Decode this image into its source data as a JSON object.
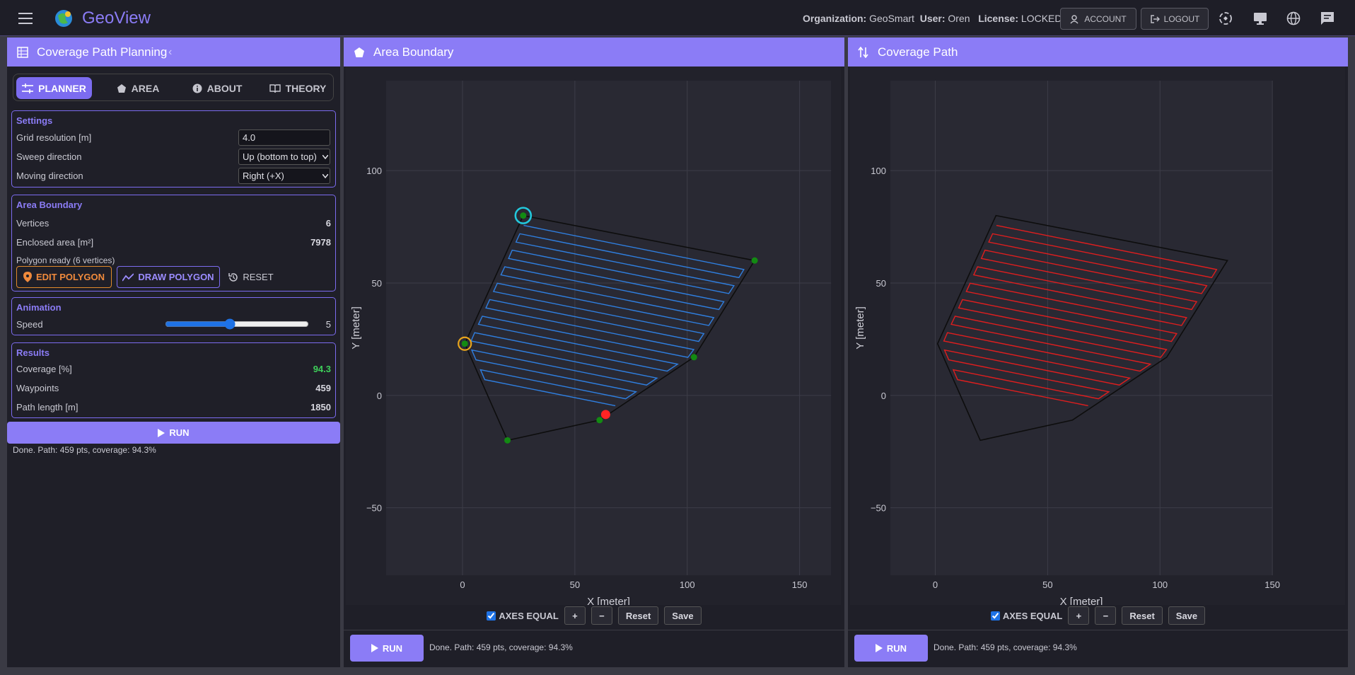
{
  "app": {
    "name": "GeoView"
  },
  "header": {
    "org_label": "Organization:",
    "org": "GeoSmart",
    "user_label": "User:",
    "user": "Oren",
    "license_label": "License:",
    "license": "LOCKED",
    "account": "ACCOUNT",
    "logout": "LOGOUT"
  },
  "sidebar": {
    "title": "Coverage Path Planning",
    "tabs": [
      "PLANNER",
      "AREA",
      "ABOUT",
      "THEORY"
    ],
    "settings": {
      "title": "Settings",
      "rows": [
        {
          "label": "Grid resolution [m]",
          "value": "4.0"
        },
        {
          "label": "Sweep direction",
          "value": "Up (bottom to top)"
        },
        {
          "label": "Moving direction",
          "value": "Right (+X)"
        }
      ]
    },
    "area": {
      "title": "Area Boundary",
      "vertices_label": "Vertices",
      "vertices": 6,
      "area_label": "Enclosed area [m²]",
      "area": 7978,
      "status": "Polygon ready (6 vertices)",
      "edit": "EDIT POLYGON",
      "draw": "DRAW POLYGON",
      "reset": "RESET"
    },
    "animation": {
      "title": "Animation",
      "speed_label": "Speed",
      "speed": 5
    },
    "results": {
      "title": "Results",
      "coverage_label": "Coverage [%]",
      "coverage": 94.3,
      "waypoints_label": "Waypoints",
      "waypoints": 459,
      "length_label": "Path length [m]",
      "length": 1850
    },
    "run": "RUN",
    "status": "Done. Path: 459 pts, coverage: 94.3%"
  },
  "area": {
    "polygon": {
      "x": [
        27,
        130,
        103,
        61,
        20,
        1
      ],
      "y": [
        80,
        60,
        17,
        -11,
        -20,
        23
      ]
    },
    "path": {
      "x": [
        27.2,
        125.2,
        123.0,
        25.5,
        23.8,
        120.8,
        118.5,
        22.1,
        20.5,
        116.3,
        114.1,
        18.8,
        17.1,
        111.8,
        109.6,
        15.5,
        13.8,
        107.4,
        105.1,
        12.1,
        10.4,
        102.9,
        100.3,
        8.8,
        7.1,
        95.7,
        91.1,
        5.4,
        3.8,
        86.5,
        81.9,
        4.1,
        6.0,
        77.2,
        72.6,
        8.0,
        9.9,
        68.0
      ],
      "y": [
        75.6,
        56.0,
        52.4,
        71.9,
        68.2,
        48.8,
        45.3,
        64.6,
        60.9,
        41.7,
        38.2,
        57.2,
        53.6,
        34.6,
        31.1,
        49.9,
        46.2,
        27.5,
        24.0,
        42.6,
        38.9,
        20.4,
        16.9,
        35.2,
        31.6,
        13.9,
        10.8,
        27.9,
        24.2,
        7.7,
        4.6,
        20.2,
        15.8,
        1.6,
        -1.5,
        11.4,
        7.0,
        -4.6
      ]
    },
    "robot": {
      "x": 63.7,
      "y": -8.5
    }
  },
  "plots": [
    {
      "title": "Area Boundary",
      "xlabel": "X [meter]",
      "ylabel": "Y [meter]",
      "xlim": [
        -34,
        164
      ],
      "ylim": [
        -80,
        140
      ],
      "xticks": [
        0,
        50,
        100,
        150
      ],
      "yticks": [
        {
          "value": -50,
          "label": "−50"
        },
        0,
        50,
        100
      ],
      "path_color": "#2f7fe0",
      "polygon_color": "#0d0d0d",
      "vertex_color": "#138a13",
      "show_vertices": true,
      "show_robot": true,
      "axes_equal": "AXES EQUAL",
      "zoom_in": "+",
      "zoom_out": "−",
      "reset": "Reset",
      "save": "Save",
      "run": "RUN",
      "status": "Done. Path: 459 pts, coverage: 94.3%"
    },
    {
      "title": "Coverage Path",
      "xlabel": "X [meter]",
      "ylabel": "Y [meter]",
      "xlim": [
        -20,
        150
      ],
      "ylim": [
        -80,
        140
      ],
      "xticks": [
        0,
        50,
        100,
        150
      ],
      "yticks": [
        {
          "value": -50,
          "label": "−50"
        },
        0,
        50,
        100
      ],
      "path_color": "#e01e1e",
      "polygon_color": "#0d0d0d",
      "vertex_color": "#138a13",
      "show_vertices": false,
      "show_robot": false,
      "axes_equal": "AXES EQUAL",
      "zoom_in": "+",
      "zoom_out": "−",
      "reset": "Reset",
      "save": "Save",
      "run": "RUN",
      "status": "Done. Path: 459 pts, coverage: 94.3%"
    }
  ]
}
